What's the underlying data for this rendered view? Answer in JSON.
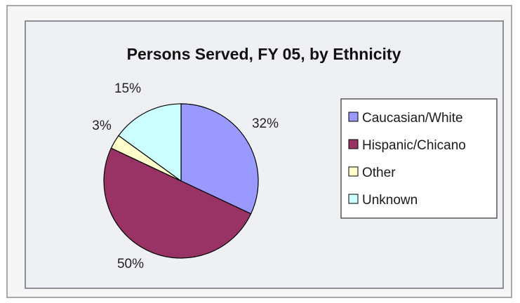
{
  "chart_data": {
    "type": "pie",
    "title": "Persons Served, FY 05, by Ethnicity",
    "slices": [
      {
        "label": "Caucasian/White",
        "value": 32,
        "value_label": "32%",
        "color": "#9999ff"
      },
      {
        "label": "Hispanic/Chicano",
        "value": 50,
        "value_label": "50%",
        "color": "#993366"
      },
      {
        "label": "Other",
        "value": 3,
        "value_label": "3%",
        "color": "#ffffcc"
      },
      {
        "label": "Unknown",
        "value": 15,
        "value_label": "15%",
        "color": "#ccffff"
      }
    ],
    "legend_position": "right",
    "grid": false
  }
}
